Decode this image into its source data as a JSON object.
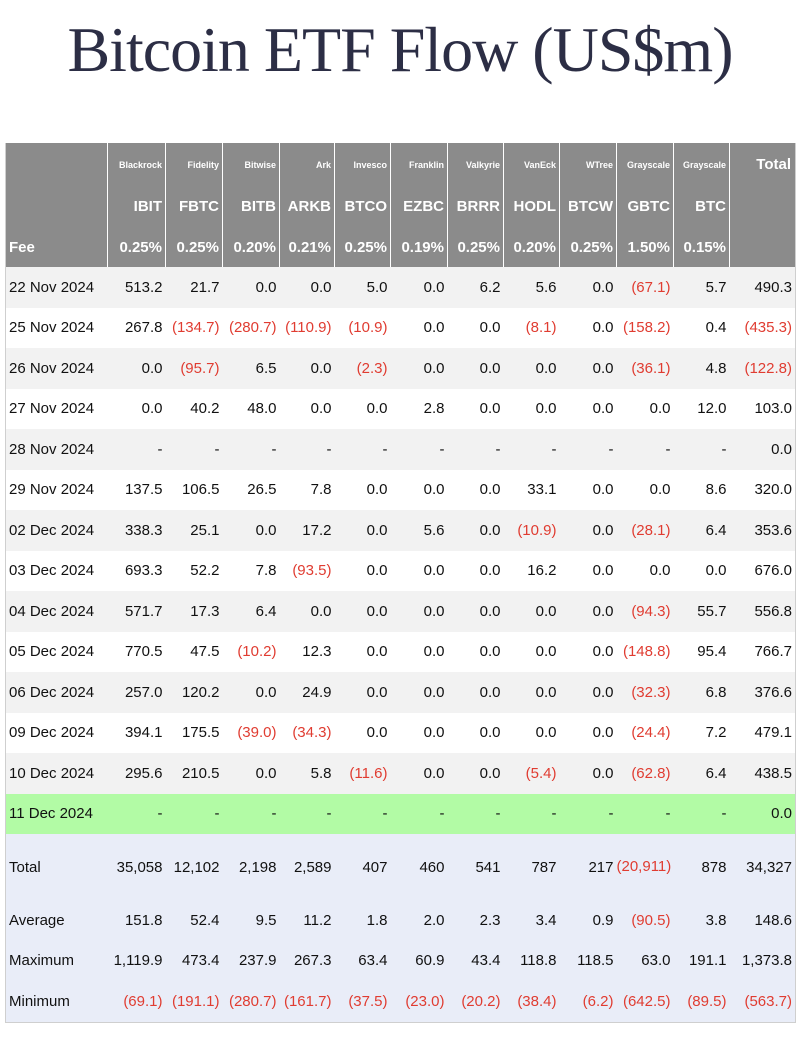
{
  "title": "Bitcoin ETF Flow (US$m)",
  "issuers": [
    "Blackrock",
    "Fidelity",
    "Bitwise",
    "Ark",
    "Invesco",
    "Franklin",
    "Valkyrie",
    "VanEck",
    "WTree",
    "Grayscale",
    "Grayscale"
  ],
  "total_header": "Total",
  "tickers": [
    "IBIT",
    "FBTC",
    "BITB",
    "ARKB",
    "BTCO",
    "EZBC",
    "BRRR",
    "HODL",
    "BTCW",
    "GBTC",
    "BTC"
  ],
  "fee_label": "Fee",
  "fees": [
    "0.25%",
    "0.25%",
    "0.20%",
    "0.21%",
    "0.25%",
    "0.19%",
    "0.25%",
    "0.20%",
    "0.25%",
    "1.50%",
    "0.15%"
  ],
  "rows": [
    {
      "date": "22 Nov 2024",
      "values": [
        "513.2",
        "21.7",
        "0.0",
        "0.0",
        "5.0",
        "0.0",
        "6.2",
        "5.6",
        "0.0",
        "(67.1)",
        "5.7",
        "490.3"
      ]
    },
    {
      "date": "25 Nov 2024",
      "values": [
        "267.8",
        "(134.7)",
        "(280.7)",
        "(110.9)",
        "(10.9)",
        "0.0",
        "0.0",
        "(8.1)",
        "0.0",
        "(158.2)",
        "0.4",
        "(435.3)"
      ]
    },
    {
      "date": "26 Nov 2024",
      "values": [
        "0.0",
        "(95.7)",
        "6.5",
        "0.0",
        "(2.3)",
        "0.0",
        "0.0",
        "0.0",
        "0.0",
        "(36.1)",
        "4.8",
        "(122.8)"
      ]
    },
    {
      "date": "27 Nov 2024",
      "values": [
        "0.0",
        "40.2",
        "48.0",
        "0.0",
        "0.0",
        "2.8",
        "0.0",
        "0.0",
        "0.0",
        "0.0",
        "12.0",
        "103.0"
      ]
    },
    {
      "date": "28 Nov 2024",
      "values": [
        "-",
        "-",
        "-",
        "-",
        "-",
        "-",
        "-",
        "-",
        "-",
        "-",
        "-",
        "0.0"
      ]
    },
    {
      "date": "29 Nov 2024",
      "values": [
        "137.5",
        "106.5",
        "26.5",
        "7.8",
        "0.0",
        "0.0",
        "0.0",
        "33.1",
        "0.0",
        "0.0",
        "8.6",
        "320.0"
      ]
    },
    {
      "date": "02 Dec 2024",
      "values": [
        "338.3",
        "25.1",
        "0.0",
        "17.2",
        "0.0",
        "5.6",
        "0.0",
        "(10.9)",
        "0.0",
        "(28.1)",
        "6.4",
        "353.6"
      ]
    },
    {
      "date": "03 Dec 2024",
      "values": [
        "693.3",
        "52.2",
        "7.8",
        "(93.5)",
        "0.0",
        "0.0",
        "0.0",
        "16.2",
        "0.0",
        "0.0",
        "0.0",
        "676.0"
      ]
    },
    {
      "date": "04 Dec 2024",
      "values": [
        "571.7",
        "17.3",
        "6.4",
        "0.0",
        "0.0",
        "0.0",
        "0.0",
        "0.0",
        "0.0",
        "(94.3)",
        "55.7",
        "556.8"
      ]
    },
    {
      "date": "05 Dec 2024",
      "values": [
        "770.5",
        "47.5",
        "(10.2)",
        "12.3",
        "0.0",
        "0.0",
        "0.0",
        "0.0",
        "0.0",
        "(148.8)",
        "95.4",
        "766.7"
      ]
    },
    {
      "date": "06 Dec 2024",
      "values": [
        "257.0",
        "120.2",
        "0.0",
        "24.9",
        "0.0",
        "0.0",
        "0.0",
        "0.0",
        "0.0",
        "(32.3)",
        "6.8",
        "376.6"
      ]
    },
    {
      "date": "09 Dec 2024",
      "values": [
        "394.1",
        "175.5",
        "(39.0)",
        "(34.3)",
        "0.0",
        "0.0",
        "0.0",
        "0.0",
        "0.0",
        "(24.4)",
        "7.2",
        "479.1"
      ]
    },
    {
      "date": "10 Dec 2024",
      "values": [
        "295.6",
        "210.5",
        "0.0",
        "5.8",
        "(11.6)",
        "0.0",
        "0.0",
        "(5.4)",
        "0.0",
        "(62.8)",
        "6.4",
        "438.5"
      ]
    },
    {
      "date": "11 Dec 2024",
      "values": [
        "-",
        "-",
        "-",
        "-",
        "-",
        "-",
        "-",
        "-",
        "-",
        "-",
        "-",
        "0.0"
      ]
    }
  ],
  "summary": [
    {
      "label": "Total",
      "values": [
        "35,058",
        "12,102",
        "2,198",
        "2,589",
        "407",
        "460",
        "541",
        "787",
        "217",
        "(20,911)",
        "878",
        "34,327"
      ]
    },
    {
      "label": "Average",
      "values": [
        "151.8",
        "52.4",
        "9.5",
        "11.2",
        "1.8",
        "2.0",
        "2.3",
        "3.4",
        "0.9",
        "(90.5)",
        "3.8",
        "148.6"
      ]
    },
    {
      "label": "Maximum",
      "values": [
        "1,119.9",
        "473.4",
        "237.9",
        "267.3",
        "63.4",
        "60.9",
        "43.4",
        "118.8",
        "118.5",
        "63.0",
        "191.1",
        "1,373.8"
      ]
    },
    {
      "label": "Minimum",
      "values": [
        "(69.1)",
        "(191.1)",
        "(280.7)",
        "(161.7)",
        "(37.5)",
        "(23.0)",
        "(20.2)",
        "(38.4)",
        "(6.2)",
        "(642.5)",
        "(89.5)",
        "(563.7)"
      ]
    }
  ],
  "colors": {
    "title": "#2c2e45",
    "header_bg": "#8b8b8b",
    "negative": "#e03c31",
    "row_alt": "#f2f2f2",
    "highlight_row": "#b2fba5",
    "summary_bg": "#e9edf8"
  }
}
